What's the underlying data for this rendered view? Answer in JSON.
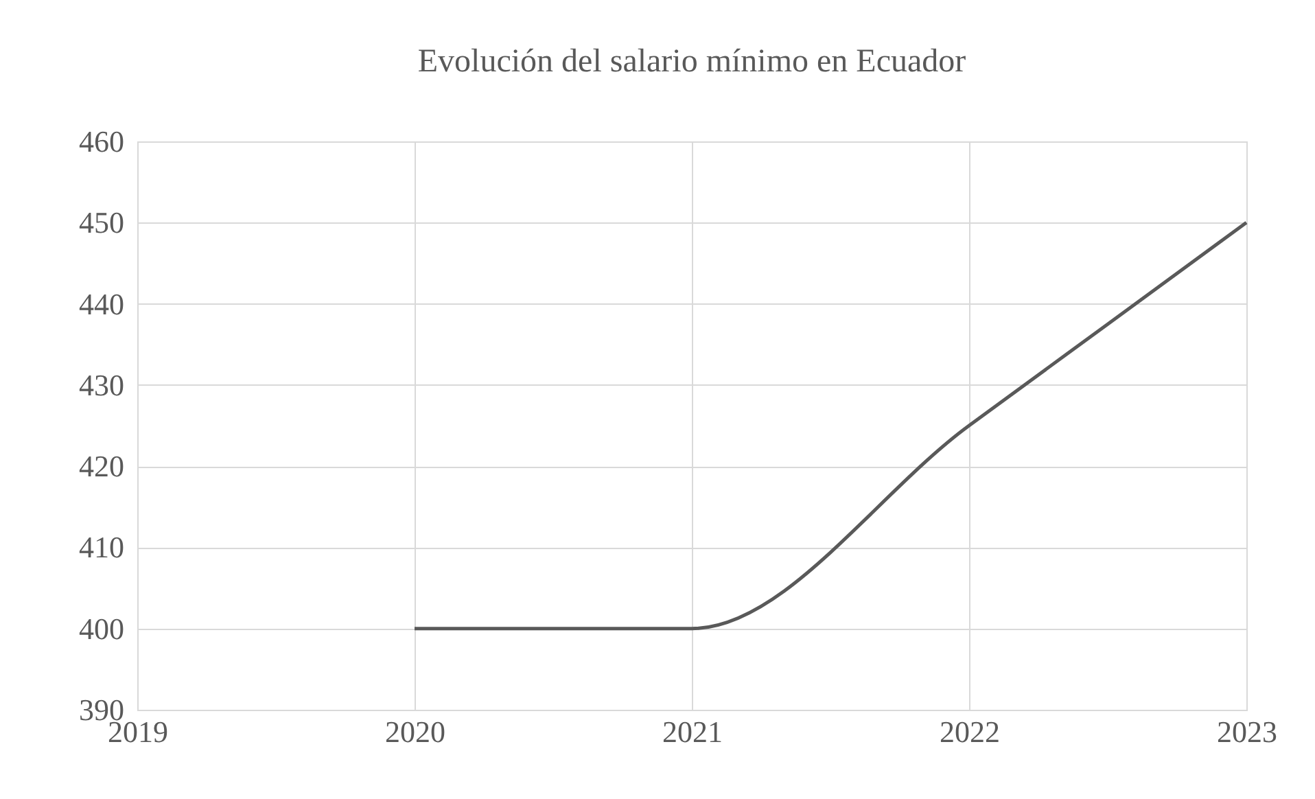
{
  "chart_data": {
    "type": "line",
    "title": "Evolución del salario mínimo en Ecuador",
    "x": [
      2020,
      2021,
      2022,
      2023
    ],
    "series": [
      {
        "color": "#595959",
        "values": [
          400,
          400,
          425,
          450
        ]
      }
    ],
    "xlim": [
      2019,
      2023
    ],
    "xticks": [
      2019,
      2020,
      2021,
      2022,
      2023
    ],
    "ylim": [
      390,
      460
    ],
    "yticks": [
      390,
      400,
      410,
      420,
      430,
      440,
      450,
      460
    ],
    "grid": true,
    "marker": "none",
    "line_style": "solid"
  }
}
